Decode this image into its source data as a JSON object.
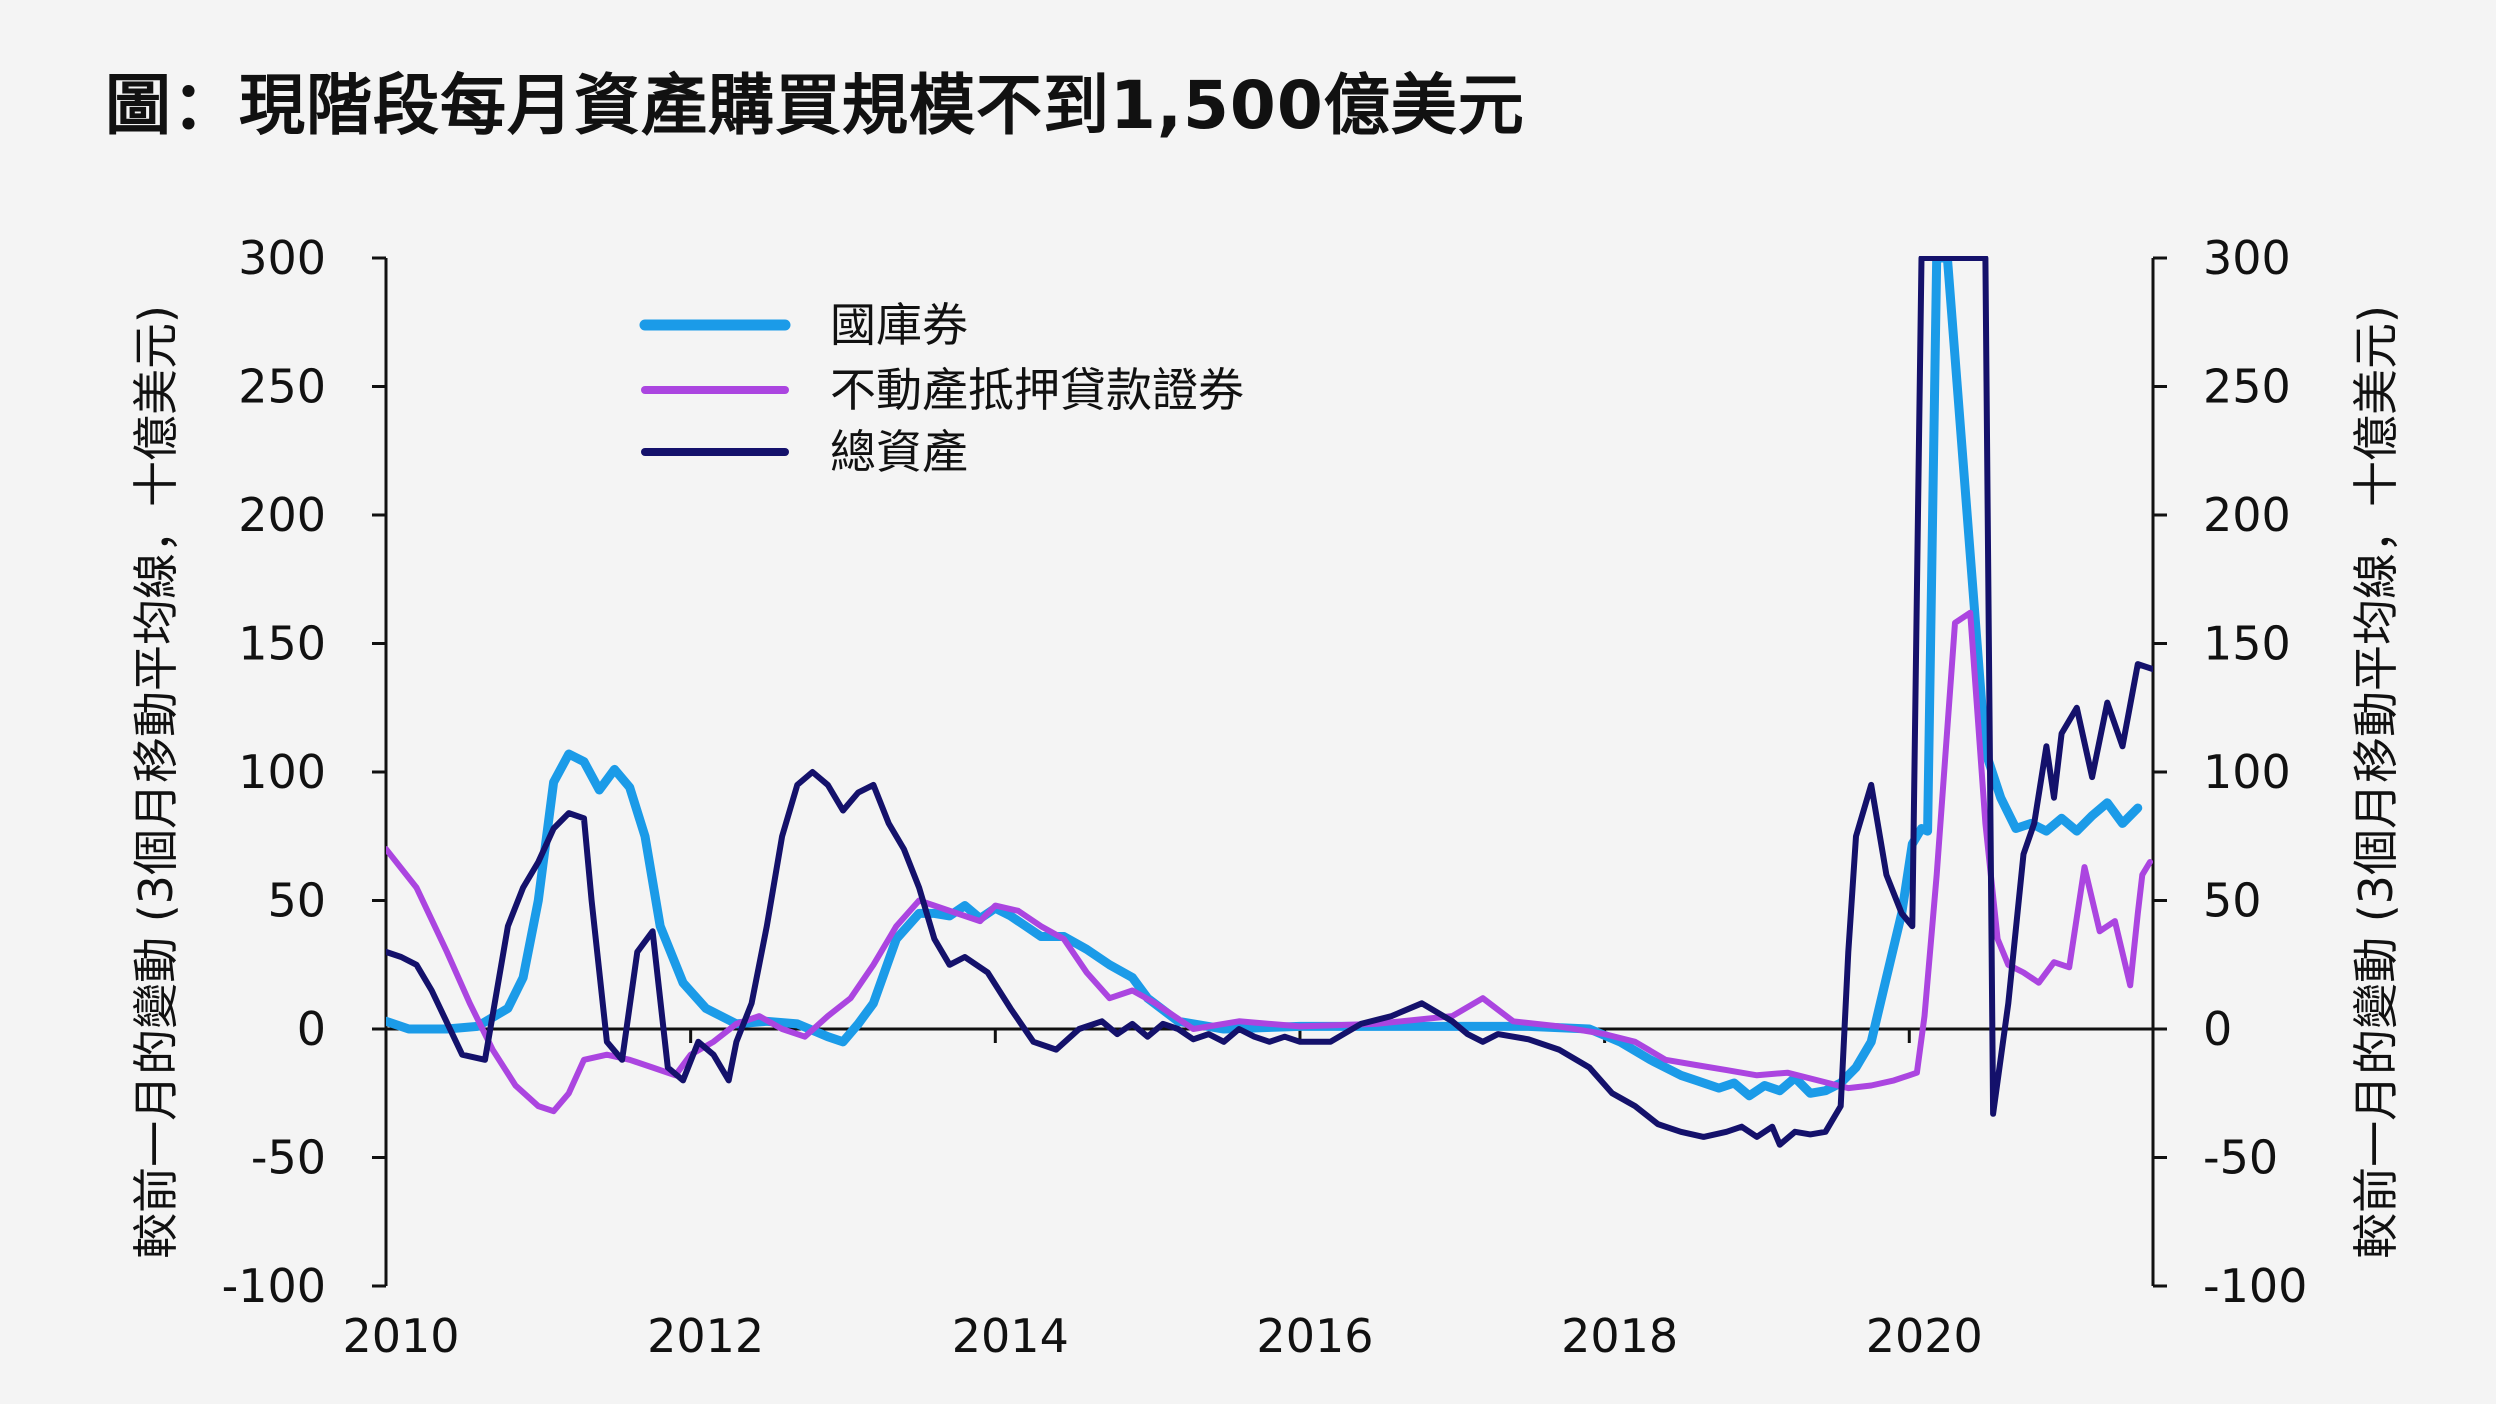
{
  "title": "圖：現階段每月資產購買規模不到1,500億美元",
  "chart_data": {
    "type": "line",
    "ylabel_left": "較前一月的變動 (3個月移動平均線，十億美元)",
    "ylabel_right": "較前一月的變動 (3個月移動平均線，十億美元)",
    "ylim": [
      -100,
      300
    ],
    "yticks": [
      300,
      250,
      200,
      150,
      100,
      50,
      0,
      -50,
      -100
    ],
    "xlim": [
      2010,
      2021.6
    ],
    "xticks": [
      2010,
      2012,
      2014,
      2016,
      2018,
      2020
    ],
    "legend_position": "top-left",
    "grid": false,
    "series": [
      {
        "name": "國庫券",
        "color": "#1b9be8",
        "width": 9,
        "x": [
          2010.0,
          2010.15,
          2010.4,
          2010.6,
          2010.8,
          2010.9,
          2011.0,
          2011.1,
          2011.2,
          2011.3,
          2011.4,
          2011.5,
          2011.6,
          2011.7,
          2011.8,
          2011.95,
          2012.1,
          2012.3,
          2012.5,
          2012.7,
          2012.9,
          2013.0,
          2013.1,
          2013.2,
          2013.35,
          2013.5,
          2013.6,
          2013.7,
          2013.8,
          2013.9,
          2014.0,
          2014.1,
          2014.2,
          2014.3,
          2014.45,
          2014.6,
          2014.75,
          2014.9,
          2015.0,
          2015.2,
          2015.5,
          2016.0,
          2016.5,
          2017.0,
          2017.5,
          2017.9,
          2018.1,
          2018.3,
          2018.5,
          2018.6,
          2018.75,
          2018.85,
          2018.95,
          2019.05,
          2019.15,
          2019.25,
          2019.35,
          2019.45,
          2019.55,
          2019.65,
          2019.75,
          2019.85,
          2019.95,
          2020.02,
          2020.08,
          2020.12,
          2020.18,
          2020.25,
          2020.5,
          2020.6,
          2020.7,
          2020.8,
          2020.9,
          2021.0,
          2021.1,
          2021.2,
          2021.3,
          2021.4,
          2021.5
        ],
        "values": [
          3,
          0,
          0,
          1,
          8,
          20,
          50,
          96,
          107,
          104,
          93,
          101,
          94,
          75,
          40,
          18,
          8,
          2,
          3,
          2,
          -3,
          -5,
          2,
          10,
          35,
          45,
          45,
          44,
          48,
          43,
          47,
          44,
          40,
          36,
          36,
          31,
          25,
          20,
          12,
          3,
          0,
          1,
          1,
          1,
          1,
          0,
          -5,
          -12,
          -18,
          -20,
          -23,
          -21,
          -26,
          -22,
          -24,
          -19,
          -25,
          -24,
          -21,
          -15,
          -5,
          20,
          45,
          72,
          78,
          77,
          300,
          300,
          108,
          90,
          78,
          80,
          77,
          82,
          77,
          83,
          88,
          80,
          86
        ],
        "break_after": 2020.12,
        "break_resume": 2020.58
      },
      {
        "name": "不動產抵押貸款證券",
        "color": "#ab45e0",
        "width": 6,
        "x": [
          2010.0,
          2010.2,
          2010.4,
          2010.55,
          2010.7,
          2010.85,
          2011.0,
          2011.1,
          2011.2,
          2011.3,
          2011.45,
          2011.6,
          2011.75,
          2011.9,
          2012.0,
          2012.15,
          2012.3,
          2012.45,
          2012.6,
          2012.75,
          2012.9,
          2013.05,
          2013.2,
          2013.35,
          2013.5,
          2013.6,
          2013.75,
          2013.9,
          2014.0,
          2014.15,
          2014.3,
          2014.45,
          2014.6,
          2014.75,
          2014.9,
          2015.05,
          2015.3,
          2015.6,
          2016.0,
          2016.5,
          2017.0,
          2017.2,
          2017.4,
          2017.7,
          2018.0,
          2018.2,
          2018.4,
          2018.6,
          2018.8,
          2019.0,
          2019.2,
          2019.4,
          2019.6,
          2019.75,
          2019.9,
          2020.0,
          2020.05,
          2020.1,
          2020.18,
          2020.3,
          2020.4,
          2020.5,
          2020.58,
          2020.65,
          2020.75,
          2020.85,
          2020.95,
          2021.05,
          2021.15,
          2021.25,
          2021.35,
          2021.45,
          2021.5
        ],
        "values": [
          70,
          55,
          30,
          10,
          -8,
          -22,
          -30,
          -32,
          -25,
          -12,
          -10,
          -12,
          -15,
          -18,
          -10,
          -5,
          2,
          5,
          0,
          -3,
          5,
          12,
          25,
          40,
          50,
          48,
          45,
          42,
          48,
          46,
          40,
          35,
          22,
          12,
          15,
          10,
          0,
          3,
          1,
          2,
          5,
          12,
          3,
          1,
          -2,
          -5,
          -12,
          -14,
          -16,
          -18,
          -17,
          -20,
          -23,
          -22,
          -20,
          -18,
          -17,
          5,
          60,
          158,
          162,
          80,
          35,
          25,
          22,
          18,
          26,
          24,
          63,
          38,
          42,
          17,
          45
        ],
        "extra_x": [
          2021.53,
          2021.58
        ],
        "extra_values": [
          60,
          65
        ]
      },
      {
        "name": "總資產",
        "color": "#14116b",
        "width": 6,
        "x": [
          2010.0,
          2010.1,
          2010.2,
          2010.3,
          2010.5,
          2010.65,
          2010.8,
          2010.9,
          2011.0,
          2011.1,
          2011.2,
          2011.3,
          2011.35,
          2011.45,
          2011.55,
          2011.65,
          2011.75,
          2011.85,
          2011.95,
          2012.05,
          2012.15,
          2012.25,
          2012.3,
          2012.4,
          2012.5,
          2012.6,
          2012.7,
          2012.8,
          2012.9,
          2013.0,
          2013.1,
          2013.2,
          2013.3,
          2013.4,
          2013.5,
          2013.6,
          2013.7,
          2013.8,
          2013.95,
          2014.1,
          2014.25,
          2014.4,
          2014.55,
          2014.7,
          2014.8,
          2014.9,
          2015.0,
          2015.1,
          2015.2,
          2015.3,
          2015.4,
          2015.5,
          2015.6,
          2015.7,
          2015.8,
          2015.9,
          2016.0,
          2016.2,
          2016.4,
          2016.6,
          2016.8,
          2017.0,
          2017.1,
          2017.2,
          2017.3,
          2017.5,
          2017.7,
          2017.9,
          2018.05,
          2018.2,
          2018.35,
          2018.5,
          2018.65,
          2018.8,
          2018.9,
          2019.0,
          2019.1,
          2019.15,
          2019.25,
          2019.35,
          2019.45,
          2019.55,
          2019.6,
          2019.65,
          2019.75,
          2019.85,
          2019.95,
          2020.02,
          2020.08,
          2020.12,
          2020.5,
          2020.55,
          2020.65,
          2020.75,
          2020.82,
          2020.9,
          2020.95,
          2021.0,
          2021.1,
          2021.2,
          2021.3,
          2021.4,
          2021.5,
          2021.6
        ],
        "values": [
          30,
          28,
          25,
          15,
          -10,
          -12,
          40,
          55,
          65,
          78,
          84,
          82,
          50,
          -5,
          -12,
          30,
          38,
          -15,
          -20,
          -5,
          -10,
          -20,
          -5,
          10,
          40,
          75,
          95,
          100,
          95,
          85,
          92,
          95,
          80,
          70,
          55,
          35,
          25,
          28,
          22,
          8,
          -5,
          -8,
          0,
          3,
          -2,
          2,
          -3,
          2,
          0,
          -4,
          -2,
          -5,
          0,
          -3,
          -5,
          -3,
          -5,
          -5,
          2,
          5,
          10,
          3,
          -2,
          -5,
          -2,
          -4,
          -8,
          -15,
          -25,
          -30,
          -37,
          -40,
          -42,
          -40,
          -38,
          -42,
          -38,
          -45,
          -40,
          -41,
          -40,
          -30,
          30,
          75,
          95,
          60,
          45,
          40,
          300,
          300,
          300,
          -33,
          10,
          68,
          80,
          110,
          90,
          115,
          125,
          98,
          127,
          110,
          142,
          140
        ],
        "break_after": 2020.12,
        "break_resume": 2020.5
      }
    ]
  }
}
